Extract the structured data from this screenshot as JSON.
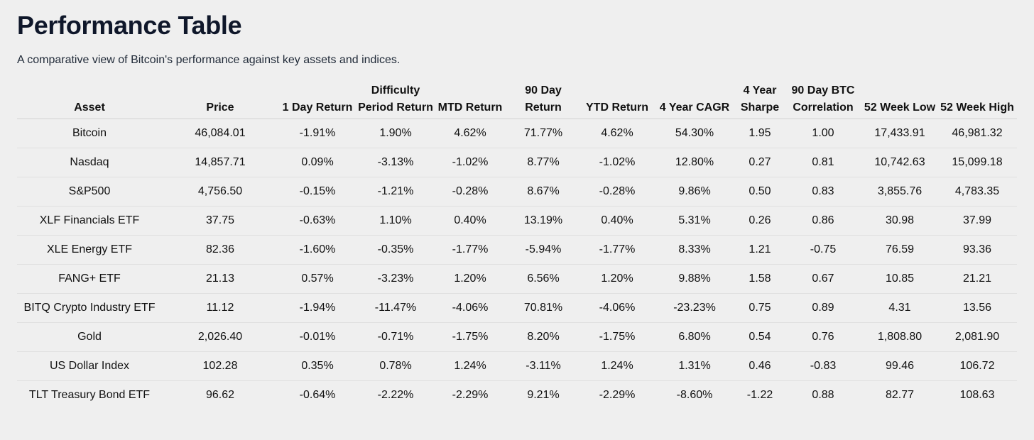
{
  "title": "Performance Table",
  "subtitle": "A comparative view of Bitcoin's performance against key assets and indices.",
  "colors": {
    "positive": "#1b7a1b",
    "negative": "#d42626",
    "text": "#111111",
    "background": "#efefef"
  },
  "columns": [
    "Asset",
    "Price",
    "1 Day Return",
    "Difficulty Period Return",
    "MTD Return",
    "90 Day Return",
    "YTD Return",
    "4 Year CAGR",
    "4 Year Sharpe",
    "90 Day BTC Correlation",
    "52 Week Low",
    "52 Week High"
  ],
  "rows": [
    [
      "Bitcoin",
      "46,084.01",
      "-1.91%",
      "1.90%",
      "4.62%",
      "71.77%",
      "4.62%",
      "54.30%",
      "1.95",
      "1.00",
      "17,433.91",
      "46,981.32"
    ],
    [
      "Nasdaq",
      "14,857.71",
      "0.09%",
      "-3.13%",
      "-1.02%",
      "8.77%",
      "-1.02%",
      "12.80%",
      "0.27",
      "0.81",
      "10,742.63",
      "15,099.18"
    ],
    [
      "S&P500",
      "4,756.50",
      "-0.15%",
      "-1.21%",
      "-0.28%",
      "8.67%",
      "-0.28%",
      "9.86%",
      "0.50",
      "0.83",
      "3,855.76",
      "4,783.35"
    ],
    [
      "XLF Financials ETF",
      "37.75",
      "-0.63%",
      "1.10%",
      "0.40%",
      "13.19%",
      "0.40%",
      "5.31%",
      "0.26",
      "0.86",
      "30.98",
      "37.99"
    ],
    [
      "XLE Energy ETF",
      "82.36",
      "-1.60%",
      "-0.35%",
      "-1.77%",
      "-5.94%",
      "-1.77%",
      "8.33%",
      "1.21",
      "-0.75",
      "76.59",
      "93.36"
    ],
    [
      "FANG+ ETF",
      "21.13",
      "0.57%",
      "-3.23%",
      "1.20%",
      "6.56%",
      "1.20%",
      "9.88%",
      "1.58",
      "0.67",
      "10.85",
      "21.21"
    ],
    [
      "BITQ Crypto Industry ETF",
      "11.12",
      "-1.94%",
      "-11.47%",
      "-4.06%",
      "70.81%",
      "-4.06%",
      "-23.23%",
      "0.75",
      "0.89",
      "4.31",
      "13.56"
    ],
    [
      "Gold",
      "2,026.40",
      "-0.01%",
      "-0.71%",
      "-1.75%",
      "8.20%",
      "-1.75%",
      "6.80%",
      "0.54",
      "0.76",
      "1,808.80",
      "2,081.90"
    ],
    [
      "US Dollar Index",
      "102.28",
      "0.35%",
      "0.78%",
      "1.24%",
      "-3.11%",
      "1.24%",
      "1.31%",
      "0.46",
      "-0.83",
      "99.46",
      "106.72"
    ],
    [
      "TLT Treasury Bond ETF",
      "96.62",
      "-0.64%",
      "-2.22%",
      "-2.29%",
      "9.21%",
      "-2.29%",
      "-8.60%",
      "-1.22",
      "0.88",
      "82.77",
      "108.63"
    ]
  ]
}
